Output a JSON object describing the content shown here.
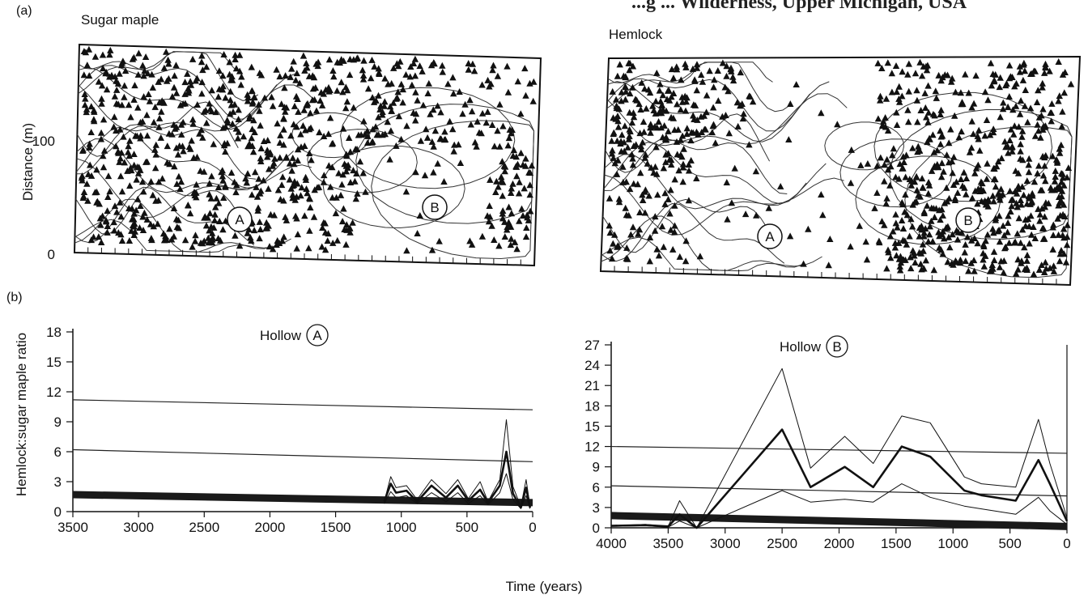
{
  "heading": "...g ... Wilderness, Upper Michigan, USA",
  "panel_a": {
    "tag": "(a)",
    "maps": [
      {
        "title": "Sugar maple",
        "ylabel": "Distance (m)",
        "yticks": [
          "100",
          "0"
        ],
        "hollows": [
          "A",
          "B"
        ]
      },
      {
        "title": "Hemlock",
        "hollows": [
          "A",
          "B"
        ]
      }
    ]
  },
  "panel_b": {
    "tag": "(b)",
    "ylabel": "Hemlock:sugar maple ratio",
    "xlabel": "Time (years)"
  },
  "chart_data": [
    {
      "type": "line",
      "title": "Hollow A",
      "title_prefix": "Hollow",
      "hollow": "A",
      "ylim": [
        0,
        18
      ],
      "yticks": [
        0,
        3,
        6,
        9,
        12,
        15,
        18
      ],
      "xlim": [
        3500,
        0
      ],
      "xticks": [
        3500,
        3000,
        2500,
        2000,
        1500,
        1000,
        500,
        0
      ],
      "reference_lines": [
        {
          "y_start": 11.2,
          "y_end": 10.2
        },
        {
          "y_start": 6.2,
          "y_end": 5.0
        }
      ],
      "band": {
        "y_start": 1.7,
        "y_end": 0.9
      },
      "series": [
        {
          "style": "upper",
          "x": [
            1130,
            1080,
            1040,
            960,
            880,
            770,
            660,
            570,
            490,
            400,
            340,
            250,
            200,
            150,
            90,
            50,
            20
          ],
          "y": [
            1.0,
            3.5,
            2.4,
            2.6,
            1.2,
            3.2,
            1.8,
            3.2,
            1.3,
            3.0,
            1.0,
            3.2,
            9.2,
            2.5,
            0.5,
            3.2,
            0.5
          ]
        },
        {
          "style": "main",
          "x": [
            1130,
            1080,
            1040,
            960,
            880,
            770,
            660,
            570,
            490,
            400,
            340,
            250,
            200,
            150,
            90,
            50,
            20
          ],
          "y": [
            1.0,
            2.8,
            1.9,
            2.1,
            1.0,
            2.6,
            1.4,
            2.6,
            1.1,
            2.2,
            0.9,
            2.6,
            6.0,
            1.8,
            0.4,
            2.4,
            0.4
          ]
        },
        {
          "style": "lower",
          "x": [
            1130,
            1080,
            1040,
            960,
            880,
            770,
            660,
            570,
            490,
            400,
            340,
            250,
            200,
            150,
            90,
            50,
            20
          ],
          "y": [
            0.8,
            2.0,
            1.4,
            1.6,
            0.8,
            1.9,
            1.0,
            1.9,
            0.8,
            1.6,
            0.7,
            1.9,
            3.8,
            1.2,
            0.3,
            1.6,
            0.3
          ]
        }
      ]
    },
    {
      "type": "line",
      "title": "Hollow B",
      "title_prefix": "Hollow",
      "hollow": "B",
      "ylim": [
        0,
        27
      ],
      "yticks": [
        0,
        3,
        6,
        9,
        12,
        15,
        18,
        21,
        24,
        27
      ],
      "xlim": [
        4000,
        0
      ],
      "xticks": [
        4000,
        3500,
        3000,
        2500,
        2000,
        1500,
        1000,
        500,
        0
      ],
      "reference_lines": [
        {
          "y_start": 12.0,
          "y_end": 11.0
        },
        {
          "y_start": 6.2,
          "y_end": 4.7
        }
      ],
      "band": {
        "y_start": 1.8,
        "y_end": 0.2
      },
      "series": [
        {
          "style": "upper",
          "x": [
            4000,
            3700,
            3500,
            3400,
            3250,
            2500,
            2250,
            1950,
            1700,
            1450,
            1200,
            900,
            750,
            450,
            250,
            150,
            0
          ],
          "y": [
            0.3,
            0.5,
            0.2,
            4.0,
            0.0,
            23.5,
            8.8,
            13.5,
            9.5,
            16.5,
            15.5,
            7.5,
            6.5,
            6.0,
            16.0,
            9.5,
            1.5
          ]
        },
        {
          "style": "main",
          "x": [
            4000,
            3700,
            3500,
            3400,
            3250,
            2500,
            2250,
            1950,
            1700,
            1450,
            1200,
            900,
            750,
            450,
            250,
            150,
            0
          ],
          "y": [
            0.3,
            0.4,
            0.2,
            2.0,
            0.0,
            14.5,
            6.0,
            9.0,
            6.0,
            12.0,
            10.5,
            5.5,
            4.8,
            4.0,
            10.0,
            6.5,
            1.0
          ]
        },
        {
          "style": "lower",
          "x": [
            4000,
            3700,
            3500,
            3400,
            3250,
            2500,
            2250,
            1950,
            1700,
            1450,
            1200,
            900,
            750,
            450,
            250,
            150,
            0
          ],
          "y": [
            0.2,
            0.3,
            0.1,
            1.0,
            0.0,
            5.5,
            3.8,
            4.2,
            3.8,
            6.5,
            4.5,
            3.2,
            2.8,
            2.0,
            4.5,
            2.5,
            0.5
          ]
        }
      ]
    }
  ]
}
